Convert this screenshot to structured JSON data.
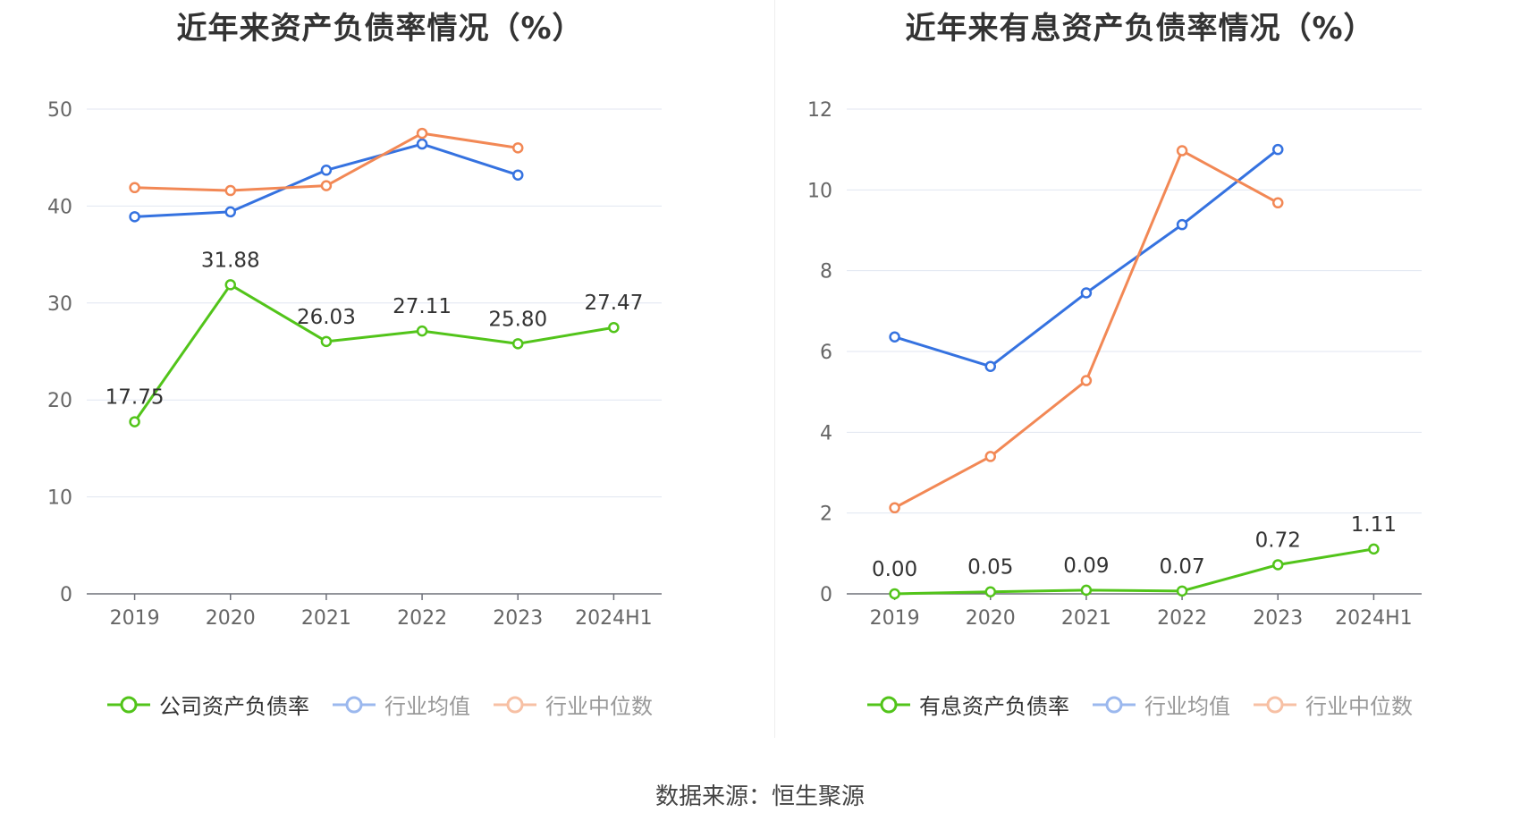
{
  "colors": {
    "company": "#52c41a",
    "avg": "#3572e0",
    "median": "#f28855",
    "grid": "#e0e6f1",
    "axis": "#6e7079",
    "legend_faded_avg": "#9bb8ee",
    "legend_faded_median": "#f7c0a4"
  },
  "chart_data": [
    {
      "type": "line",
      "title": "近年来资产负债率情况（%）",
      "categories": [
        "2019",
        "2020",
        "2021",
        "2022",
        "2023",
        "2024H1"
      ],
      "ylim": [
        0,
        50
      ],
      "yticks": [
        "0",
        "10",
        "20",
        "30",
        "40",
        "50"
      ],
      "series": [
        {
          "name": "公司资产负债率",
          "key": "company",
          "values": [
            17.75,
            31.88,
            26.03,
            27.11,
            25.8,
            27.47
          ],
          "labels": [
            "17.75",
            "31.88",
            "26.03",
            "27.11",
            "25.80",
            "27.47"
          ]
        },
        {
          "name": "行业均值",
          "key": "avg",
          "values": [
            38.9,
            39.4,
            43.7,
            46.4,
            43.2,
            null
          ]
        },
        {
          "name": "行业中位数",
          "key": "median",
          "values": [
            41.9,
            41.6,
            42.1,
            47.5,
            46.0,
            null
          ]
        }
      ]
    },
    {
      "type": "line",
      "title": "近年来有息资产负债率情况（%）",
      "categories": [
        "2019",
        "2020",
        "2021",
        "2022",
        "2023",
        "2024H1"
      ],
      "ylim": [
        0,
        12
      ],
      "yticks": [
        "0",
        "2",
        "4",
        "6",
        "8",
        "10",
        "12"
      ],
      "series": [
        {
          "name": "有息资产负债率",
          "key": "company",
          "values": [
            0.0,
            0.05,
            0.09,
            0.07,
            0.72,
            1.11
          ],
          "labels": [
            "0.00",
            "0.05",
            "0.09",
            "0.07",
            "0.72",
            "1.11"
          ]
        },
        {
          "name": "行业均值",
          "key": "avg",
          "values": [
            6.36,
            5.63,
            7.45,
            9.14,
            11.0,
            null
          ]
        },
        {
          "name": "行业中位数",
          "key": "median",
          "values": [
            2.13,
            3.4,
            5.28,
            10.97,
            9.68,
            null
          ]
        }
      ]
    }
  ],
  "source": "数据来源：恒生聚源"
}
